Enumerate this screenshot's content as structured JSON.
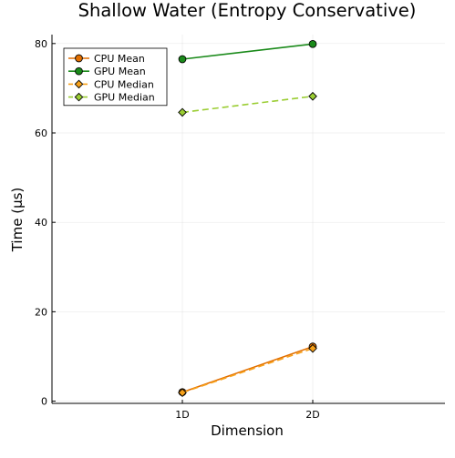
{
  "chart_data": {
    "type": "line",
    "title": "Shallow Water (Entropy Conservative)",
    "xlabel": "Dimension",
    "ylabel": "Time (µs)",
    "categories": [
      "1D",
      "2D"
    ],
    "ylim": [
      -0.5,
      82
    ],
    "yticks": [
      0,
      20,
      40,
      60,
      80
    ],
    "grid": true,
    "legend_position": "top-left",
    "series": [
      {
        "name": "CPU Mean",
        "values": [
          2.0,
          12.2
        ],
        "color": "#e26f00",
        "marker": "circle",
        "dash": "solid"
      },
      {
        "name": "GPU Mean",
        "values": [
          76.5,
          79.9
        ],
        "color": "#1a8a1a",
        "marker": "circle",
        "dash": "solid"
      },
      {
        "name": "CPU Median",
        "values": [
          1.9,
          11.8
        ],
        "color": "#f7a11a",
        "marker": "diamond",
        "dash": "dashed"
      },
      {
        "name": "GPU Median",
        "values": [
          64.6,
          68.2
        ],
        "color": "#9acd32",
        "marker": "diamond",
        "dash": "dashed"
      }
    ]
  }
}
